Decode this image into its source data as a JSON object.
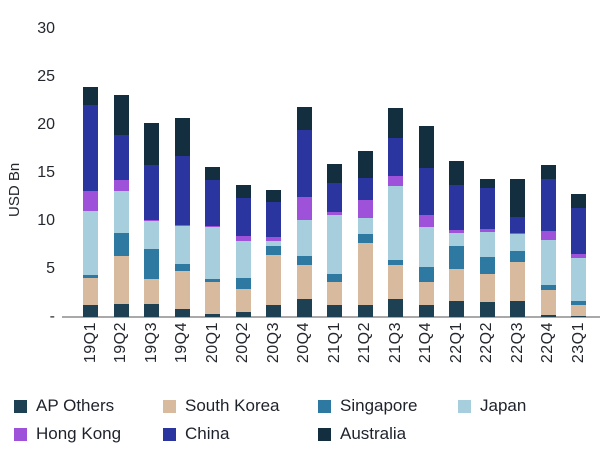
{
  "chart_data": {
    "type": "bar",
    "stacked": true,
    "title": "",
    "xlabel": "",
    "ylabel": "USD Bn",
    "ylim": [
      0,
      30
    ],
    "yticks": [
      30,
      25,
      20,
      15,
      10,
      5
    ],
    "zero_tick_label": "-",
    "grid": false,
    "legend_position": "bottom",
    "categories": [
      "19Q1",
      "19Q2",
      "19Q3",
      "19Q4",
      "20Q1",
      "20Q2",
      "20Q3",
      "20Q4",
      "21Q1",
      "21Q2",
      "21Q3",
      "21Q4",
      "22Q1",
      "22Q2",
      "22Q3",
      "22Q4",
      "23Q1"
    ],
    "series": [
      {
        "name": "AP Others",
        "color": "#1d4153",
        "values": [
          1.2,
          1.4,
          1.4,
          0.8,
          0.3,
          0.5,
          1.2,
          1.9,
          1.2,
          1.2,
          1.9,
          1.2,
          1.7,
          1.6,
          1.7,
          0.2,
          0.1
        ]
      },
      {
        "name": "South Korea",
        "color": "#d8bb9e",
        "values": [
          2.9,
          5.0,
          2.6,
          4.0,
          3.4,
          2.4,
          5.3,
          3.5,
          2.4,
          6.5,
          3.5,
          2.4,
          3.3,
          2.9,
          4.0,
          2.6,
          1.2
        ]
      },
      {
        "name": "Singapore",
        "color": "#2e79a2",
        "values": [
          0.3,
          2.3,
          3.1,
          0.7,
          0.3,
          1.2,
          0.9,
          1.0,
          0.9,
          1.0,
          0.5,
          1.6,
          2.4,
          1.8,
          1.2,
          0.5,
          0.4
        ]
      },
      {
        "name": "Japan",
        "color": "#a7cedd",
        "values": [
          6.6,
          4.4,
          2.9,
          4.0,
          5.4,
          3.8,
          0.5,
          3.7,
          6.1,
          1.6,
          7.8,
          4.2,
          1.4,
          2.6,
          1.8,
          4.7,
          4.4
        ]
      },
      {
        "name": "Hong Kong",
        "color": "#9d52d9",
        "values": [
          2.1,
          1.2,
          0.1,
          0.1,
          0.1,
          0.5,
          0.4,
          2.4,
          0.3,
          1.9,
          1.0,
          1.2,
          0.3,
          0.3,
          0.1,
          1.0,
          0.5
        ]
      },
      {
        "name": "China",
        "color": "#2a359f",
        "values": [
          9.0,
          4.7,
          5.7,
          7.2,
          4.8,
          4.0,
          3.7,
          7.0,
          3.1,
          2.3,
          4.0,
          4.9,
          4.7,
          4.2,
          1.6,
          5.4,
          4.8
        ]
      },
      {
        "name": "Australia",
        "color": "#132e3f",
        "values": [
          1.9,
          4.1,
          4.4,
          3.9,
          1.3,
          1.4,
          1.2,
          2.4,
          1.9,
          2.8,
          3.1,
          4.4,
          2.5,
          1.0,
          4.0,
          1.4,
          1.4
        ]
      }
    ],
    "legend_rows": [
      [
        "AP Others",
        "South Korea",
        "Singapore",
        "Japan"
      ],
      [
        "Hong Kong",
        "China",
        "Australia"
      ]
    ]
  }
}
